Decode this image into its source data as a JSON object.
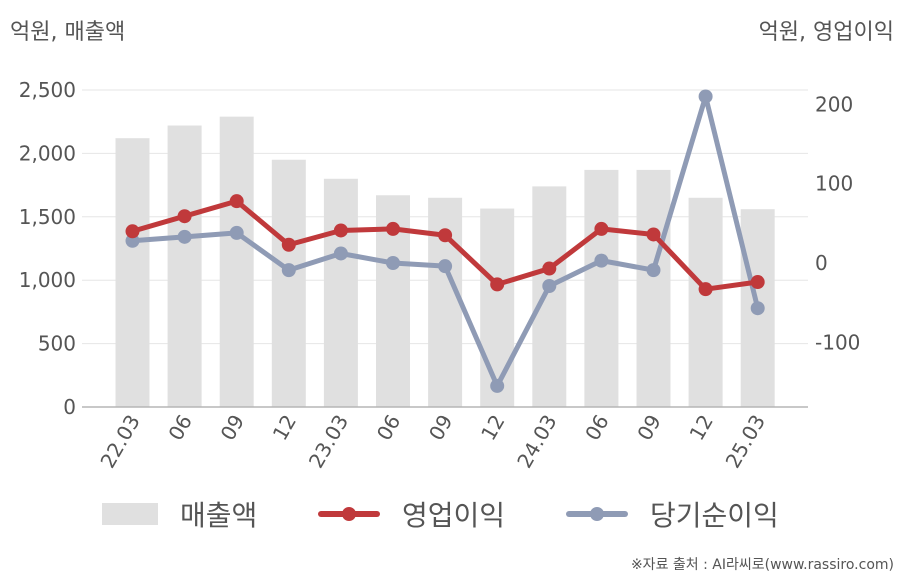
{
  "units": {
    "left": "억원, 매출액",
    "right": "억원, 영업이익"
  },
  "chart_data": {
    "type": "bar+line",
    "categories": [
      "22.03",
      "06",
      "09",
      "12",
      "23.03",
      "06",
      "09",
      "12",
      "24.03",
      "06",
      "09",
      "12",
      "25.03"
    ],
    "left_axis": {
      "ticks": [
        "0",
        "500",
        "1,000",
        "1,500",
        "2,000",
        "2,500"
      ],
      "ylim": [
        0,
        2500
      ]
    },
    "right_axis": {
      "ticks": [
        "-100",
        "0",
        "100",
        "200"
      ],
      "ylim": [
        -180,
        230
      ]
    },
    "series": [
      {
        "name": "매출액",
        "kind": "bar",
        "axis": "left",
        "color": "#e0e0e0",
        "values": [
          2120,
          2220,
          2290,
          1950,
          1800,
          1670,
          1650,
          1565,
          1740,
          1870,
          1870,
          1650,
          1560
        ]
      },
      {
        "name": "영업이익",
        "kind": "line",
        "axis": "right",
        "color": "#c0393b",
        "values": [
          40,
          59,
          78,
          23,
          41,
          43,
          35,
          -27,
          -7,
          43,
          36,
          -33,
          -24
        ]
      },
      {
        "name": "당기순이익",
        "kind": "line",
        "axis": "right",
        "color": "#8f9bb5",
        "values": [
          28,
          33,
          38,
          -9,
          12,
          0,
          -4,
          -155,
          -29,
          3,
          -9,
          210,
          -57
        ]
      }
    ],
    "grid": true,
    "legend_position": "bottom"
  },
  "legend": [
    {
      "label": "매출액"
    },
    {
      "label": "영업이익"
    },
    {
      "label": "당기순이익"
    }
  ],
  "source": "※자료 출처 : AI라씨로(www.rassiro.com)"
}
